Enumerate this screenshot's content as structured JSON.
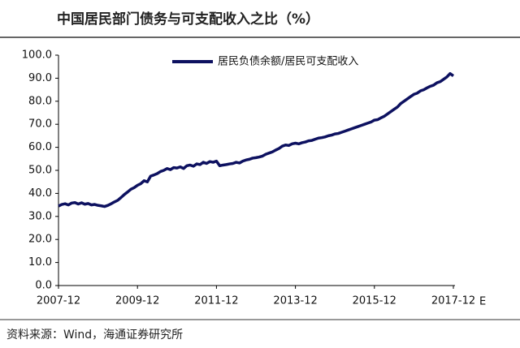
{
  "chart_data": {
    "type": "line",
    "title": "中国居民部门债务与可支配收入之比（%）",
    "source": "资料来源：Wind，海通证券研究所",
    "annotation": "E",
    "categories": [
      "2007-12",
      "2008-01",
      "2008-02",
      "2008-03",
      "2008-04",
      "2008-05",
      "2008-06",
      "2008-07",
      "2008-08",
      "2008-09",
      "2008-10",
      "2008-11",
      "2008-12",
      "2009-01",
      "2009-02",
      "2009-03",
      "2009-04",
      "2009-05",
      "2009-06",
      "2009-07",
      "2009-08",
      "2009-09",
      "2009-10",
      "2009-11",
      "2009-12",
      "2010-01",
      "2010-02",
      "2010-03",
      "2010-04",
      "2010-05",
      "2010-06",
      "2010-07",
      "2010-08",
      "2010-09",
      "2010-10",
      "2010-11",
      "2010-12",
      "2011-01",
      "2011-02",
      "2011-03",
      "2011-04",
      "2011-05",
      "2011-06",
      "2011-07",
      "2011-08",
      "2011-09",
      "2011-10",
      "2011-11",
      "2011-12",
      "2012-01",
      "2012-02",
      "2012-03",
      "2012-04",
      "2012-05",
      "2012-06",
      "2012-07",
      "2012-08",
      "2012-09",
      "2012-10",
      "2012-11",
      "2012-12",
      "2013-01",
      "2013-02",
      "2013-03",
      "2013-04",
      "2013-05",
      "2013-06",
      "2013-07",
      "2013-08",
      "2013-09",
      "2013-10",
      "2013-11",
      "2013-12",
      "2014-01",
      "2014-02",
      "2014-03",
      "2014-04",
      "2014-05",
      "2014-06",
      "2014-07",
      "2014-08",
      "2014-09",
      "2014-10",
      "2014-11",
      "2014-12",
      "2015-01",
      "2015-02",
      "2015-03",
      "2015-04",
      "2015-05",
      "2015-06",
      "2015-07",
      "2015-08",
      "2015-09",
      "2015-10",
      "2015-11",
      "2015-12",
      "2016-01",
      "2016-02",
      "2016-03",
      "2016-04",
      "2016-05",
      "2016-06",
      "2016-07",
      "2016-08",
      "2016-09",
      "2016-10",
      "2016-11",
      "2016-12",
      "2017-01",
      "2017-02",
      "2017-03",
      "2017-04",
      "2017-05",
      "2017-06",
      "2017-07",
      "2017-08",
      "2017-09",
      "2017-10",
      "2017-11",
      "2017-12"
    ],
    "series": [
      {
        "name": "居民负债余额/居民可支配收入",
        "color": "#0d1160",
        "values": [
          34.5,
          35.2,
          35.5,
          35.0,
          35.8,
          36.0,
          35.4,
          35.9,
          35.3,
          35.6,
          35.0,
          35.2,
          34.8,
          34.6,
          34.3,
          34.8,
          35.5,
          36.3,
          37.0,
          38.2,
          39.5,
          40.6,
          41.8,
          42.5,
          43.5,
          44.2,
          45.5,
          45.0,
          47.5,
          48.0,
          48.6,
          49.5,
          50.0,
          50.8,
          50.3,
          51.2,
          51.0,
          51.5,
          50.8,
          52.0,
          52.3,
          51.8,
          52.8,
          52.5,
          53.5,
          53.0,
          53.8,
          53.5,
          54.0,
          52.0,
          52.3,
          52.5,
          52.8,
          53.0,
          53.5,
          53.2,
          54.0,
          54.5,
          54.8,
          55.3,
          55.5,
          55.8,
          56.2,
          57.0,
          57.5,
          58.0,
          58.8,
          59.5,
          60.5,
          61.0,
          60.8,
          61.5,
          61.8,
          61.5,
          62.0,
          62.3,
          62.8,
          63.0,
          63.5,
          64.0,
          64.2,
          64.5,
          65.0,
          65.3,
          65.8,
          66.0,
          66.5,
          67.0,
          67.5,
          68.0,
          68.5,
          69.0,
          69.5,
          70.0,
          70.5,
          71.0,
          71.8,
          72.0,
          72.8,
          73.5,
          74.5,
          75.5,
          76.5,
          77.5,
          79.0,
          80.0,
          81.0,
          82.0,
          83.0,
          83.5,
          84.5,
          85.0,
          85.8,
          86.5,
          87.0,
          88.0,
          88.5,
          89.5,
          90.5,
          92.0,
          91.0
        ]
      }
    ],
    "xticks": [
      "2007-12",
      "2009-12",
      "2011-12",
      "2013-12",
      "2015-12",
      "2017-12"
    ],
    "ylim": [
      0,
      100
    ],
    "yticks": [
      {
        "value": 0,
        "label": "0.0"
      },
      {
        "value": 10,
        "label": "10.0"
      },
      {
        "value": 20,
        "label": "20.0"
      },
      {
        "value": 30,
        "label": "30.0"
      },
      {
        "value": 40,
        "label": "40.0"
      },
      {
        "value": 50,
        "label": "50.0"
      },
      {
        "value": 60,
        "label": "60.0"
      },
      {
        "value": 70,
        "label": "70.0"
      },
      {
        "value": 80,
        "label": "80.0"
      },
      {
        "value": 90,
        "label": "90.0"
      },
      {
        "value": 100,
        "label": "100.0"
      }
    ],
    "grid": false,
    "legend": "top"
  }
}
